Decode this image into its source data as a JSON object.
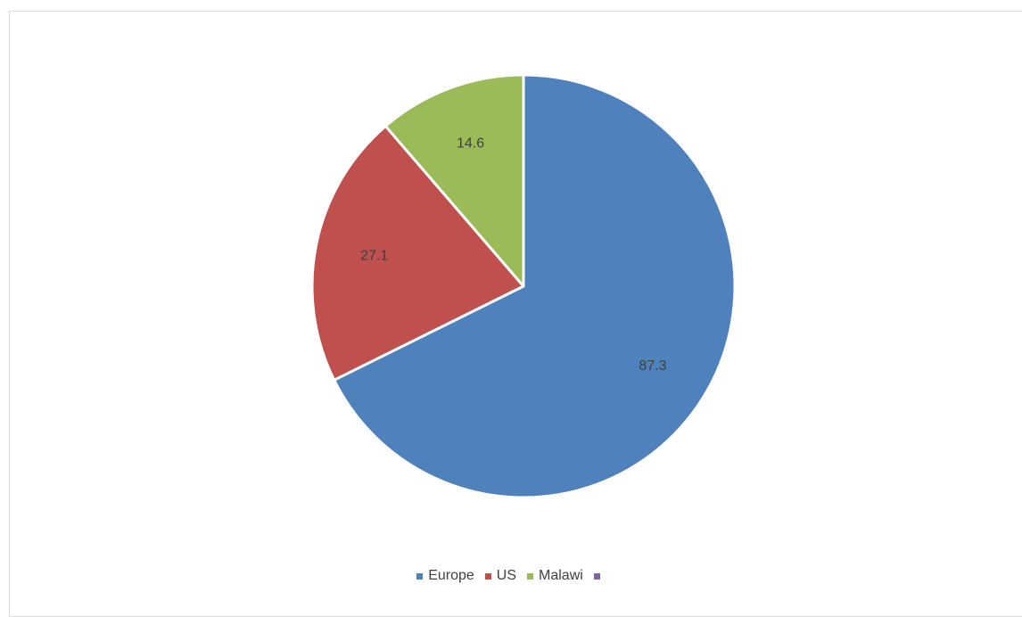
{
  "chart_data": {
    "type": "pie",
    "title": "",
    "categories": [
      "Europe",
      "US",
      "Malawi",
      ""
    ],
    "values": [
      87.3,
      27.1,
      14.6,
      0
    ],
    "data_labels": [
      "87.3",
      "27.1",
      "14.6",
      ""
    ],
    "colors": [
      "#4f81bd",
      "#c0504d",
      "#9bbb59",
      "#8064a2"
    ],
    "start_angle_deg": 0,
    "direction": "clockwise",
    "legend_position": "bottom",
    "slice_border_color": "#ffffff"
  },
  "legend": {
    "items": [
      {
        "label": "Europe",
        "color": "#4f81bd"
      },
      {
        "label": "US",
        "color": "#c0504d"
      },
      {
        "label": "Malawi",
        "color": "#9bbb59"
      },
      {
        "label": "",
        "color": "#8064a2"
      }
    ]
  }
}
